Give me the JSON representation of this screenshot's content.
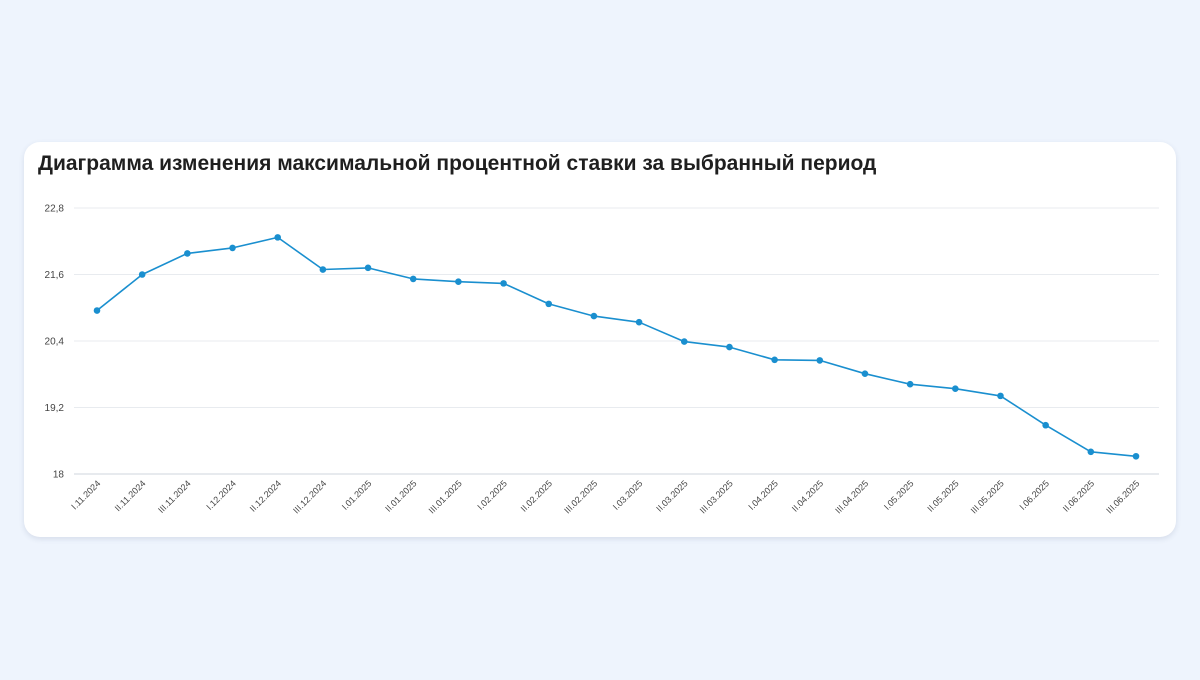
{
  "page": {
    "title": "Диаграмма изменения максимальной процентной ставки за выбранный период"
  },
  "chart_data": {
    "type": "line",
    "title": "Диаграмма изменения максимальной процентной ставки за выбранный период",
    "xlabel": "",
    "ylabel": "",
    "ylim": [
      18,
      22.8
    ],
    "yticks": [
      "18",
      "19,2",
      "20,4",
      "21,6",
      "22,8"
    ],
    "ytick_values": [
      18,
      19.2,
      20.4,
      21.6,
      22.8
    ],
    "grid": true,
    "legend": "none",
    "line_color": "#1a8fcf",
    "categories": [
      "I.11.2024",
      "II.11.2024",
      "III.11.2024",
      "I.12.2024",
      "II.12.2024",
      "III.12.2024",
      "I.01.2025",
      "II.01.2025",
      "III.01.2025",
      "I.02.2025",
      "II.02.2025",
      "III.02.2025",
      "I.03.2025",
      "II.03.2025",
      "III.03.2025",
      "I.04.2025",
      "II.04.2025",
      "III.04.2025",
      "I.05.2025",
      "II.05.2025",
      "III.05.2025",
      "I.06.2025",
      "II.06.2025",
      "III.06.2025"
    ],
    "values": [
      20.95,
      21.6,
      21.98,
      22.08,
      22.27,
      21.69,
      21.72,
      21.52,
      21.47,
      21.44,
      21.07,
      20.85,
      20.74,
      20.39,
      20.29,
      20.06,
      20.05,
      19.81,
      19.62,
      19.54,
      19.41,
      18.88,
      18.4,
      18.32
    ]
  }
}
